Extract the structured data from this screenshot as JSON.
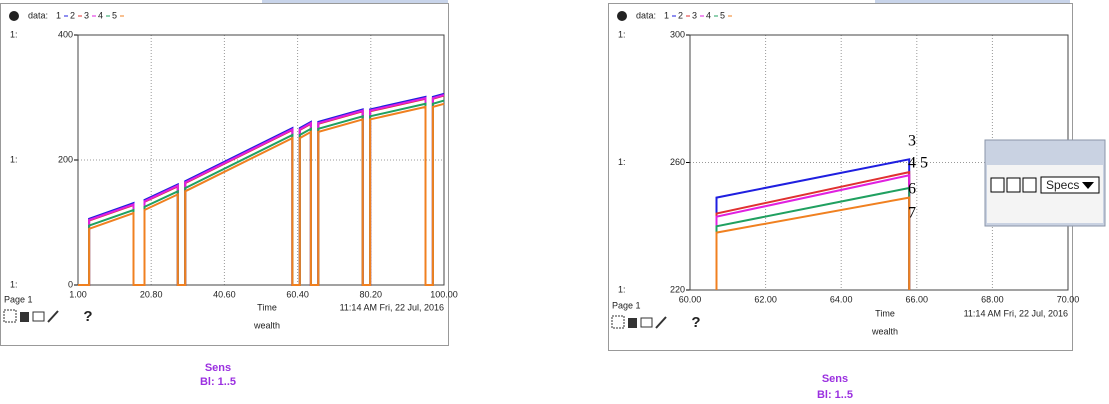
{
  "chart_data": [
    {
      "type": "line",
      "legend_title": "data:",
      "axis_marker": "1:",
      "x_label": "Time",
      "footer_label": "wealth",
      "page_label": "Page 1",
      "timestamp": "11:14 AM   Fri, 22 Jul, 2016",
      "help": "?",
      "x": [
        1,
        4,
        4,
        16,
        16,
        19,
        19,
        28,
        28,
        30,
        30,
        59,
        59,
        61,
        61,
        64,
        64,
        66,
        66,
        78,
        78,
        80,
        80,
        95,
        95,
        97,
        97,
        100
      ],
      "xlim": [
        1,
        100
      ],
      "xticks": [
        {
          "value": 1,
          "label": "1.00"
        },
        {
          "value": 20.8,
          "label": "20.80"
        },
        {
          "value": 40.6,
          "label": "40.60"
        },
        {
          "value": 60.4,
          "label": "60.40"
        },
        {
          "value": 80.2,
          "label": "80.20"
        },
        {
          "value": 100,
          "label": "100.00"
        }
      ],
      "ylim": [
        0,
        400
      ],
      "yticks": [
        0,
        200,
        400
      ],
      "grid": true,
      "series": [
        {
          "name": "1",
          "color": "#1f1fe0",
          "values": [
            0,
            0,
            106,
            131,
            0,
            0,
            136,
            161,
            0,
            0,
            166,
            251,
            0,
            0,
            251,
            261,
            0,
            0,
            261,
            281,
            0,
            0,
            281,
            301,
            0,
            0,
            301,
            306
          ]
        },
        {
          "name": "2",
          "color": "#e03030",
          "values": [
            0,
            0,
            103,
            128,
            0,
            0,
            133,
            158,
            0,
            0,
            163,
            248,
            0,
            0,
            248,
            258,
            0,
            0,
            258,
            278,
            0,
            0,
            278,
            298,
            0,
            0,
            298,
            303
          ]
        },
        {
          "name": "3",
          "color": "#e020e0",
          "values": [
            0,
            0,
            104,
            129,
            0,
            0,
            134,
            159,
            0,
            0,
            164,
            249,
            0,
            0,
            249,
            259,
            0,
            0,
            259,
            279,
            0,
            0,
            279,
            299,
            0,
            0,
            299,
            304
          ]
        },
        {
          "name": "4",
          "color": "#20a060",
          "values": [
            0,
            0,
            95,
            120,
            0,
            0,
            125,
            150,
            0,
            0,
            155,
            240,
            0,
            0,
            240,
            250,
            0,
            0,
            250,
            270,
            0,
            0,
            270,
            290,
            0,
            0,
            290,
            295
          ]
        },
        {
          "name": "5",
          "color": "#f08020",
          "values": [
            0,
            0,
            90,
            115,
            0,
            0,
            120,
            145,
            0,
            0,
            150,
            235,
            0,
            0,
            235,
            245,
            0,
            0,
            245,
            265,
            0,
            0,
            265,
            285,
            0,
            0,
            285,
            290
          ]
        }
      ]
    },
    {
      "type": "line",
      "legend_title": "data:",
      "axis_marker": "1:",
      "x_label": "Time",
      "footer_label": "wealth",
      "page_label": "Page 1",
      "timestamp": "11:14 AM   Fri, 22 Jul, 2016",
      "help": "?",
      "x": [
        60.7,
        60.7,
        65.8,
        65.8
      ],
      "xlim": [
        60,
        70
      ],
      "xticks": [
        {
          "value": 60,
          "label": "60.00"
        },
        {
          "value": 62,
          "label": "62.00"
        },
        {
          "value": 64,
          "label": "64.00"
        },
        {
          "value": 66,
          "label": "66.00"
        },
        {
          "value": 68,
          "label": "68.00"
        },
        {
          "value": 70,
          "label": "70.00"
        }
      ],
      "ylim": [
        220,
        300
      ],
      "yticks": [
        220,
        260,
        300
      ],
      "grid": true,
      "series": [
        {
          "name": "1",
          "color": "#1f1fe0",
          "values": [
            220,
            249,
            261,
            220
          ]
        },
        {
          "name": "2",
          "color": "#e03030",
          "values": [
            220,
            244,
            257,
            220
          ]
        },
        {
          "name": "3",
          "color": "#e020e0",
          "values": [
            220,
            243,
            256,
            220
          ]
        },
        {
          "name": "4",
          "color": "#20a060",
          "values": [
            220,
            240,
            252,
            220
          ]
        },
        {
          "name": "5",
          "color": "#f08020",
          "values": [
            220,
            238,
            249,
            220
          ]
        }
      ],
      "annotations": [
        "3",
        "4 5",
        "6",
        "7"
      ],
      "control_panel": {
        "dropdown": "Specs"
      }
    }
  ],
  "captions": [
    {
      "title": "Sens",
      "subtitle": "Bl: 1..5"
    },
    {
      "title": "Sens",
      "subtitle": "Bl: 1..5"
    }
  ]
}
